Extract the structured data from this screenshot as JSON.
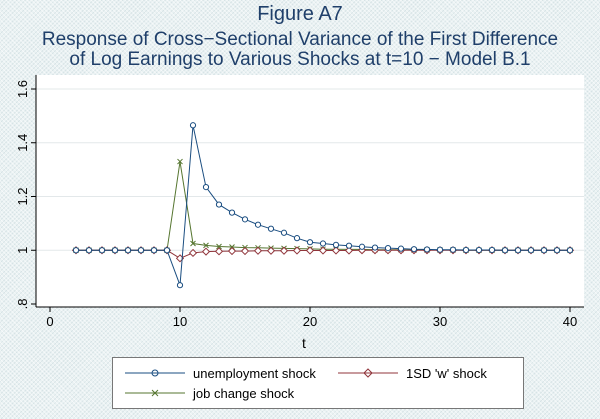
{
  "title": [
    "Figure A7",
    "Response of Cross−Sectional Variance of the First Difference",
    "of Log Earnings to Various Shocks at t=10  − Model B.1"
  ],
  "chart_data": {
    "type": "line",
    "title": "Figure A7",
    "xlabel": "t",
    "ylabel": "",
    "xlim": [
      0,
      40
    ],
    "ylim": [
      0.8,
      1.6
    ],
    "xticks": [
      0,
      10,
      20,
      30,
      40
    ],
    "xtick_labels": [
      "0",
      "10",
      "20",
      "30",
      "40"
    ],
    "yticks": [
      0.8,
      1.0,
      1.2,
      1.4,
      1.6
    ],
    "ytick_labels": [
      ".8",
      "1",
      "1.2",
      "1.4",
      "1.6"
    ],
    "grid": "horizontal",
    "legend_position": "bottom",
    "x": [
      2,
      3,
      4,
      5,
      6,
      7,
      8,
      9,
      10,
      11,
      12,
      13,
      14,
      15,
      16,
      17,
      18,
      19,
      20,
      21,
      22,
      23,
      24,
      25,
      26,
      27,
      28,
      29,
      30,
      31,
      32,
      33,
      34,
      35,
      36,
      37,
      38,
      39,
      40
    ],
    "series": [
      {
        "name": "unemployment shock",
        "color": "#1a4d80",
        "marker": "circle",
        "values": [
          1,
          1,
          1,
          1,
          1,
          1,
          1,
          1,
          0.87,
          1.465,
          1.235,
          1.17,
          1.14,
          1.115,
          1.095,
          1.08,
          1.065,
          1.045,
          1.03,
          1.025,
          1.02,
          1.017,
          1.013,
          1.01,
          1.008,
          1.006,
          1.004,
          1.003,
          1.002,
          1.002,
          1.001,
          1.001,
          1.001,
          1,
          1,
          1,
          1,
          1,
          1
        ]
      },
      {
        "name": "1SD 'w' shock",
        "color": "#90353b",
        "marker": "diamond",
        "values": [
          1,
          1,
          1,
          1,
          1,
          1,
          1,
          1,
          0.97,
          0.99,
          0.995,
          0.996,
          0.997,
          0.997,
          0.998,
          0.998,
          0.998,
          0.999,
          0.999,
          0.999,
          0.999,
          0.999,
          1,
          1,
          1,
          1,
          1,
          1,
          1,
          1,
          1,
          1,
          1,
          1,
          1,
          1,
          1,
          1,
          1
        ]
      },
      {
        "name": "job change shock",
        "color": "#55752f",
        "marker": "x",
        "values": [
          1,
          1,
          1,
          1,
          1,
          1,
          1,
          1,
          1.33,
          1.025,
          1.018,
          1.014,
          1.012,
          1.01,
          1.009,
          1.008,
          1.007,
          1.006,
          1.005,
          1.004,
          1.004,
          1.003,
          1.003,
          1.002,
          1.002,
          1.002,
          1.001,
          1.001,
          1.001,
          1.001,
          1,
          1,
          1,
          1,
          1,
          1,
          1,
          1,
          1
        ]
      }
    ]
  }
}
